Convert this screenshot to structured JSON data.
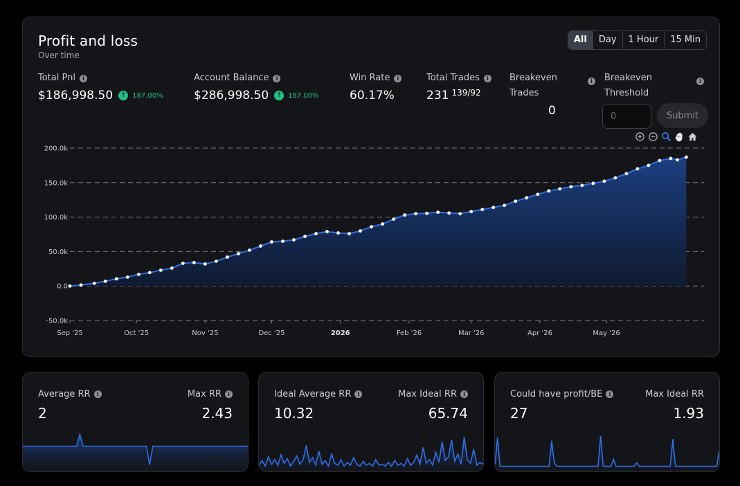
{
  "pnl": {
    "title": "Profit and loss",
    "subtitle": "Over time",
    "ranges": [
      {
        "label": "All",
        "active": true
      },
      {
        "label": "Day",
        "active": false
      },
      {
        "label": "1 Hour",
        "active": false
      },
      {
        "label": "15 Min",
        "active": false
      }
    ],
    "stats": {
      "total_pnl": {
        "label": "Total Pnl",
        "value": "$186,998.50",
        "change": "187.00%"
      },
      "account_balance": {
        "label": "Account Balance",
        "value": "$286,998.50",
        "change": "187.00%"
      },
      "win_rate": {
        "label": "Win Rate",
        "value": "60.17%"
      },
      "total_trades": {
        "label": "Total Trades",
        "value": "231",
        "split": "139/92"
      },
      "breakeven_trades": {
        "label_line1": "Breakeven",
        "label_line2": "Trades",
        "value": "0"
      },
      "breakeven_threshold": {
        "label_line1": "Breakeven",
        "label_line2": "Threshold",
        "placeholder": "0",
        "submit_label": "Submit"
      }
    },
    "toolbar_icons": [
      "zoom-in-icon",
      "zoom-out-icon",
      "zoom-select-icon",
      "pan-hand-icon",
      "home-reset-icon"
    ]
  },
  "chart_data": {
    "type": "area",
    "x_labels": [
      "Sep '25",
      "Oct '25",
      "Nov '25",
      "Dec '25",
      "2026",
      "Feb '26",
      "Mar '26",
      "Apr '26",
      "May '26"
    ],
    "y_tick_labels": [
      "200.0k",
      "150.0k",
      "100.0k",
      "50.0k",
      "0.0",
      "-50.0k"
    ],
    "y_ticks": [
      200000,
      150000,
      100000,
      50000,
      0,
      -50000
    ],
    "ylim": [
      -50000,
      200000
    ],
    "xlim": [
      "2025-09-01",
      "2026-06-14"
    ],
    "grid": true,
    "series": [
      {
        "line_color": "#2f6fe8",
        "fill_top": "#1b3f80",
        "fill_bottom": "#0f1a30",
        "marker_color": "#ffffff",
        "points": [
          [
            "2025-09-01",
            0
          ],
          [
            "2025-09-06",
            1500
          ],
          [
            "2025-09-12",
            4000
          ],
          [
            "2025-09-17",
            7000
          ],
          [
            "2025-09-22",
            10500
          ],
          [
            "2025-09-27",
            13000
          ],
          [
            "2025-10-02",
            17000
          ],
          [
            "2025-10-07",
            19500
          ],
          [
            "2025-10-12",
            23000
          ],
          [
            "2025-10-17",
            26000
          ],
          [
            "2025-10-22",
            33000
          ],
          [
            "2025-10-27",
            34000
          ],
          [
            "2025-11-01",
            32000
          ],
          [
            "2025-11-06",
            36000
          ],
          [
            "2025-11-11",
            42000
          ],
          [
            "2025-11-16",
            47000
          ],
          [
            "2025-11-21",
            52000
          ],
          [
            "2025-11-26",
            58000
          ],
          [
            "2025-12-01",
            64000
          ],
          [
            "2025-12-06",
            65000
          ],
          [
            "2025-12-11",
            67000
          ],
          [
            "2025-12-16",
            72000
          ],
          [
            "2025-12-21",
            76000
          ],
          [
            "2025-12-26",
            79000
          ],
          [
            "2025-12-31",
            77000
          ],
          [
            "2026-01-05",
            76000
          ],
          [
            "2026-01-10",
            80000
          ],
          [
            "2026-01-15",
            86000
          ],
          [
            "2026-01-20",
            90000
          ],
          [
            "2026-01-25",
            97000
          ],
          [
            "2026-01-30",
            103000
          ],
          [
            "2026-02-04",
            105000
          ],
          [
            "2026-02-09",
            105500
          ],
          [
            "2026-02-14",
            107000
          ],
          [
            "2026-02-19",
            106000
          ],
          [
            "2026-02-24",
            105000
          ],
          [
            "2026-03-01",
            108000
          ],
          [
            "2026-03-06",
            111000
          ],
          [
            "2026-03-11",
            114000
          ],
          [
            "2026-03-16",
            117000
          ],
          [
            "2026-03-21",
            123000
          ],
          [
            "2026-03-26",
            128000
          ],
          [
            "2026-03-31",
            133000
          ],
          [
            "2026-04-05",
            138000
          ],
          [
            "2026-04-10",
            141000
          ],
          [
            "2026-04-15",
            144000
          ],
          [
            "2026-04-20",
            146000
          ],
          [
            "2026-04-25",
            149000
          ],
          [
            "2026-04-30",
            152000
          ],
          [
            "2026-05-05",
            157000
          ],
          [
            "2026-05-10",
            163000
          ],
          [
            "2026-05-15",
            170000
          ],
          [
            "2026-05-20",
            175000
          ],
          [
            "2026-05-25",
            182000
          ],
          [
            "2026-05-30",
            185000
          ],
          [
            "2026-06-02",
            183000
          ],
          [
            "2026-06-06",
            186998.5
          ]
        ]
      }
    ]
  },
  "mini_cards": [
    {
      "left_label": "Average RR",
      "left_value": "2",
      "right_label": "Max RR",
      "right_value": "2.43",
      "left_info": true,
      "right_info": true,
      "sparkline": [
        0.5,
        0.5,
        0.5,
        0.5,
        0.5,
        0.5,
        0.5,
        0.5,
        0.5,
        0.5,
        0.5,
        0.5,
        0.5,
        0.5,
        0.5,
        0.5,
        0.5,
        0.5,
        2.4,
        0.5,
        0.5,
        0.5,
        0.5,
        0.5,
        0.5,
        0.5,
        0.5,
        0.5,
        0.5,
        0.5,
        0.5,
        0.5,
        0.5,
        0.5,
        0.5,
        0.5,
        0.5,
        0.5,
        0.5,
        0.5,
        -2.5,
        0.5,
        0.5,
        0.5,
        0.5,
        0.5,
        0.5,
        0.5,
        0.5,
        0.5,
        0.5,
        0.5,
        0.5,
        0.5,
        0.5,
        0.5,
        0.5,
        0.5,
        0.5,
        0.5,
        0.5,
        0.5,
        0.5,
        0.5,
        0.5,
        0.5,
        0.5,
        0.5,
        0.5,
        0.5,
        0.5,
        0.5
      ],
      "spark_range": [
        -3,
        3
      ]
    },
    {
      "left_label": "Ideal Average RR",
      "left_value": "10.32",
      "right_label": "Max Ideal RR",
      "right_value": "65.74",
      "left_info": true,
      "right_info": true,
      "sparkline": [
        3,
        8,
        2,
        12,
        4,
        9,
        3,
        14,
        5,
        10,
        2,
        7,
        13,
        4,
        9,
        24,
        6,
        11,
        3,
        18,
        4,
        8,
        2,
        15,
        5,
        3,
        9,
        2,
        6,
        3,
        11,
        4,
        2,
        7,
        3,
        5,
        2,
        9,
        3,
        4,
        2,
        6,
        2,
        8,
        3,
        5,
        2,
        10,
        3,
        6,
        14,
        4,
        22,
        5,
        9,
        3,
        17,
        6,
        28,
        8,
        12,
        30,
        7,
        15,
        4,
        33,
        9,
        5,
        20,
        3,
        6,
        4
      ],
      "spark_range": [
        0,
        40
      ]
    },
    {
      "left_label": "Could have profit/BE",
      "left_value": "27",
      "right_label": "Max Ideal RR",
      "right_value": "1.93",
      "left_info": true,
      "right_info": false,
      "sparkline": [
        0.2,
        1.8,
        0.1,
        0.1,
        0.1,
        0.1,
        0.1,
        0.1,
        0.1,
        0.1,
        0.1,
        0.1,
        0.1,
        0.1,
        0.1,
        0.1,
        0.1,
        0.1,
        0.1,
        0.1,
        0.1,
        0.1,
        1.6,
        0.3,
        0.1,
        0.1,
        0.1,
        0.1,
        0.1,
        0.1,
        0.1,
        0.1,
        0.1,
        0.1,
        0.1,
        0.1,
        0.1,
        0.1,
        0.1,
        0.1,
        0.1,
        1.9,
        0.1,
        0.1,
        0.1,
        0.1,
        0.5,
        0.1,
        0.1,
        0.1,
        0.1,
        0.1,
        0.1,
        0.1,
        0.1,
        0.3,
        0.1,
        0.1,
        0.1,
        0.1,
        0.1,
        0.1,
        0.1,
        0.1,
        0.1,
        0.1,
        0.1,
        0.1,
        0.1,
        1.7,
        0.1,
        0.1,
        0.1,
        0.1,
        0.1,
        0.1,
        0.1,
        0.1,
        0.1,
        0.1,
        0.1,
        0.1,
        0.1,
        0.1,
        0.1,
        0.1,
        0.1,
        1.0
      ],
      "spark_range": [
        0,
        2.2
      ]
    }
  ]
}
